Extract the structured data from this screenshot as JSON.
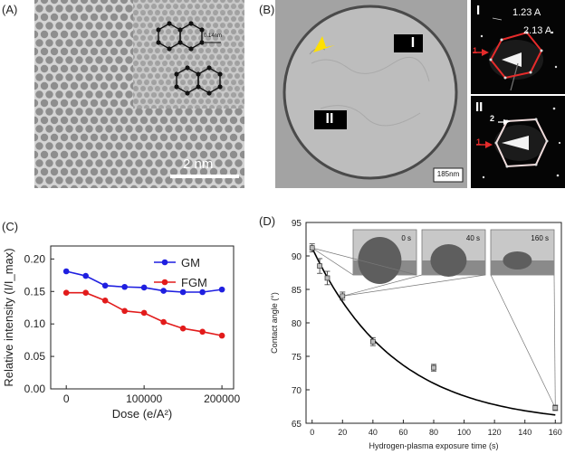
{
  "panels": {
    "a": {
      "label": "(A)",
      "scale_bar": "2 nm",
      "inset_scale": "0.14nm"
    },
    "b": {
      "label": "(B)",
      "region1": "I",
      "region2": "II",
      "scale_bar": "185nm",
      "diff1": {
        "label": "I",
        "d1": "1.23 A",
        "d2": "2.13 A",
        "marker1": "1"
      },
      "diff2": {
        "label": "II",
        "marker1": "1",
        "marker2": "2"
      }
    },
    "c": {
      "label": "(C)"
    },
    "d": {
      "label": "(D)",
      "insets": [
        "0 s",
        "40 s",
        "160 s"
      ]
    }
  },
  "chart_data": [
    {
      "type": "line",
      "title": "",
      "xlabel": "Dose (e/A²)",
      "ylabel": "Relative intensity (I/I_max)",
      "xlim": [
        -20000,
        215000
      ],
      "ylim": [
        0.0,
        0.22
      ],
      "xticks": [
        0,
        100000,
        200000
      ],
      "xtick_labels": [
        "0",
        "100000",
        "200000"
      ],
      "yticks": [
        0.0,
        0.05,
        0.1,
        0.15,
        0.2
      ],
      "ytick_labels": [
        "0.00",
        "0.05",
        "0.10",
        "0.15",
        "0.20"
      ],
      "legend_position": "top-right",
      "series": [
        {
          "name": "GM",
          "color": "#1f1fe0",
          "x": [
            0,
            25000,
            50000,
            75000,
            100000,
            125000,
            150000,
            175000,
            200000
          ],
          "values": [
            0.181,
            0.174,
            0.159,
            0.157,
            0.156,
            0.151,
            0.149,
            0.149,
            0.153
          ]
        },
        {
          "name": "FGM",
          "color": "#e21b1b",
          "x": [
            0,
            25000,
            50000,
            75000,
            100000,
            125000,
            150000,
            175000,
            200000
          ],
          "values": [
            0.148,
            0.148,
            0.136,
            0.12,
            0.117,
            0.103,
            0.093,
            0.088,
            0.082
          ]
        }
      ]
    },
    {
      "type": "scatter",
      "title": "",
      "xlabel": "Hydrogen-plasma exposure time (s)",
      "ylabel": "Contact angle (°)",
      "xlim": [
        -4,
        164
      ],
      "ylim": [
        65,
        95
      ],
      "xticks": [
        0,
        20,
        40,
        60,
        80,
        100,
        120,
        140,
        160
      ],
      "xtick_labels": [
        "0",
        "20",
        "40",
        "60",
        "80",
        "100",
        "120",
        "140",
        "160"
      ],
      "yticks": [
        65,
        70,
        75,
        80,
        85,
        90,
        95
      ],
      "ytick_labels": [
        "65",
        "70",
        "75",
        "80",
        "85",
        "90",
        "95"
      ],
      "series": [
        {
          "name": "Contact angle",
          "color": "#333333",
          "x": [
            0,
            5,
            10,
            20,
            40,
            80,
            160
          ],
          "values": [
            91.2,
            88.5,
            86.7,
            84.0,
            77.2,
            73.3,
            67.3
          ],
          "errors": [
            0.6,
            1.1,
            1.0,
            0.6,
            0.6,
            0.5,
            0.4
          ]
        },
        {
          "name": "Exponential fit",
          "color": "#000000",
          "fit": {
            "model": "y0 + A*exp(-x/t)",
            "y0": 64.8,
            "A": 26.4,
            "t": 55
          }
        }
      ]
    }
  ]
}
